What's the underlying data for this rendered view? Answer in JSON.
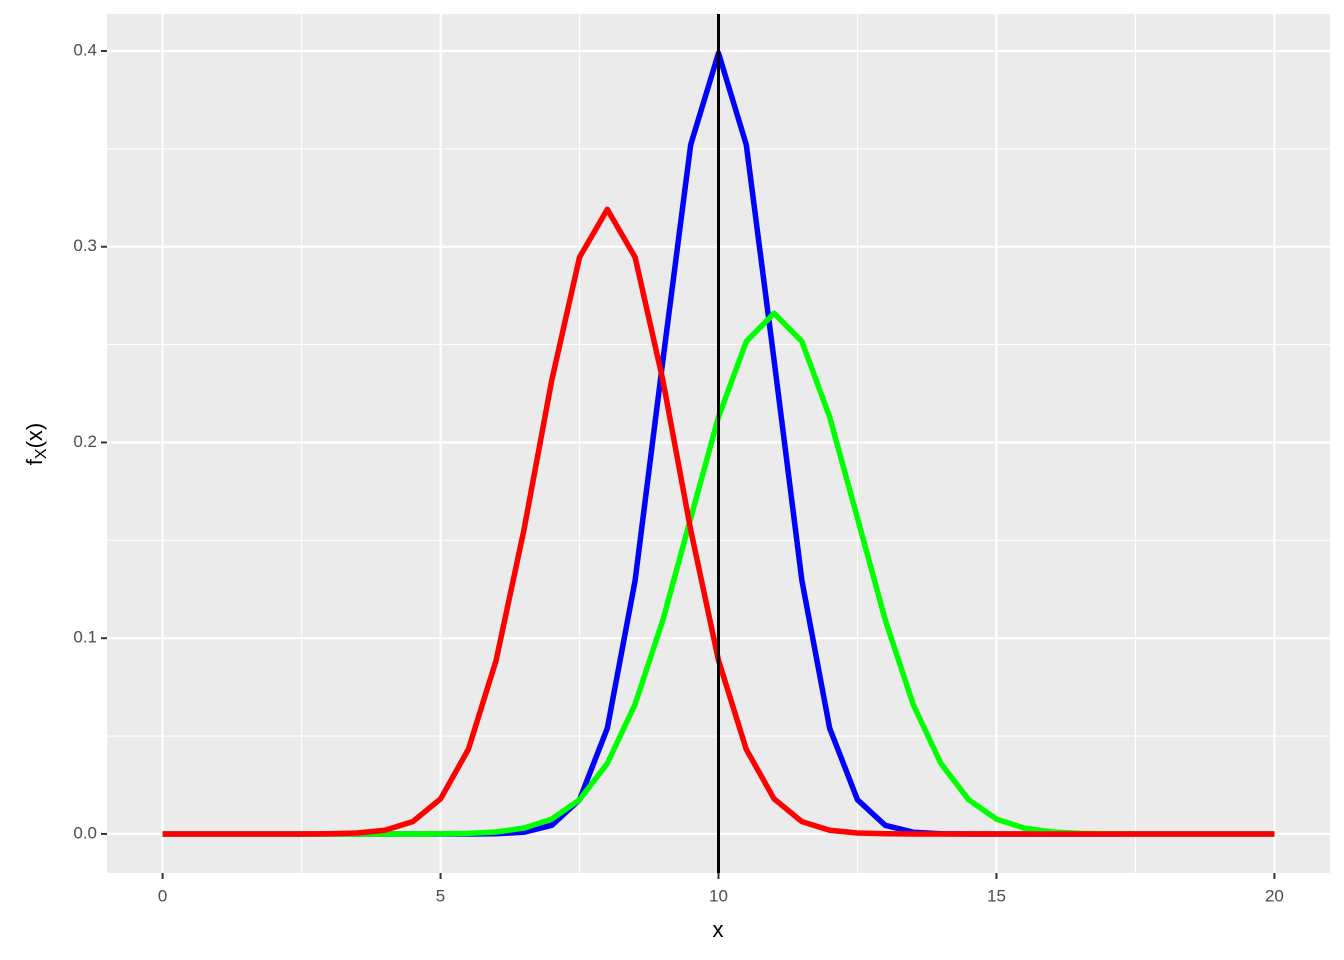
{
  "chart_data": {
    "type": "line",
    "xlabel": "x",
    "ylabel": {
      "base": "f",
      "subscript": "X",
      "rest": "(x)"
    },
    "x": [
      0,
      0.5,
      1,
      1.5,
      2,
      2.5,
      3,
      3.5,
      4,
      4.5,
      5,
      5.5,
      6,
      6.5,
      7,
      7.5,
      8,
      8.5,
      9,
      9.5,
      10,
      10.5,
      11,
      11.5,
      12,
      12.5,
      13,
      13.5,
      14,
      14.5,
      15,
      15.5,
      16,
      16.5,
      17,
      17.5,
      18,
      18.5,
      19,
      19.5,
      20
    ],
    "series": [
      {
        "color": "#0000ff",
        "values": [
          0,
          0,
          0,
          0,
          0,
          0,
          0,
          0,
          0,
          0,
          0,
          0,
          0.0001,
          0.0009,
          0.0044,
          0.0175,
          0.054,
          0.1295,
          0.242,
          0.3521,
          0.3989,
          0.3521,
          0.242,
          0.1295,
          0.054,
          0.0175,
          0.0044,
          0.0009,
          0.0001,
          0,
          0,
          0,
          0,
          0,
          0,
          0,
          0,
          0,
          0,
          0,
          0
        ]
      },
      {
        "color": "#00ff00",
        "values": [
          0,
          0,
          0,
          0,
          0,
          0,
          0,
          0,
          0,
          0,
          0.0001,
          0.0003,
          0.001,
          0.003,
          0.0076,
          0.0175,
          0.036,
          0.0663,
          0.1093,
          0.1613,
          0.213,
          0.2516,
          0.266,
          0.2516,
          0.213,
          0.1613,
          0.1093,
          0.0663,
          0.036,
          0.0175,
          0.0076,
          0.003,
          0.001,
          0.0003,
          0.0001,
          0,
          0,
          0,
          0,
          0,
          0
        ]
      },
      {
        "color": "#ff0000",
        "values": [
          0,
          0,
          0,
          0,
          0,
          0,
          0.0001,
          0.0005,
          0.0019,
          0.0063,
          0.0179,
          0.0432,
          0.0887,
          0.1553,
          0.2317,
          0.2946,
          0.3191,
          0.2946,
          0.2317,
          0.1553,
          0.0887,
          0.0432,
          0.0179,
          0.0063,
          0.0019,
          0.0005,
          0.0001,
          0,
          0,
          0,
          0,
          0,
          0,
          0,
          0,
          0,
          0,
          0,
          0,
          0,
          0
        ]
      }
    ],
    "vline": 10,
    "xlim": [
      -1,
      21
    ],
    "ylim": [
      -0.01995,
      0.41889
    ],
    "xticks": [
      0,
      5,
      10,
      15,
      20
    ],
    "yticks": [
      {
        "value": 0,
        "label": "0.0"
      },
      0.1,
      0.2,
      0.3,
      0.4
    ],
    "minor_xticks": [
      2.5,
      7.5,
      12.5,
      17.5
    ],
    "minor_yticks": [
      0.05,
      0.15,
      0.25,
      0.35
    ],
    "grid": true,
    "background": "#ebebeb"
  }
}
